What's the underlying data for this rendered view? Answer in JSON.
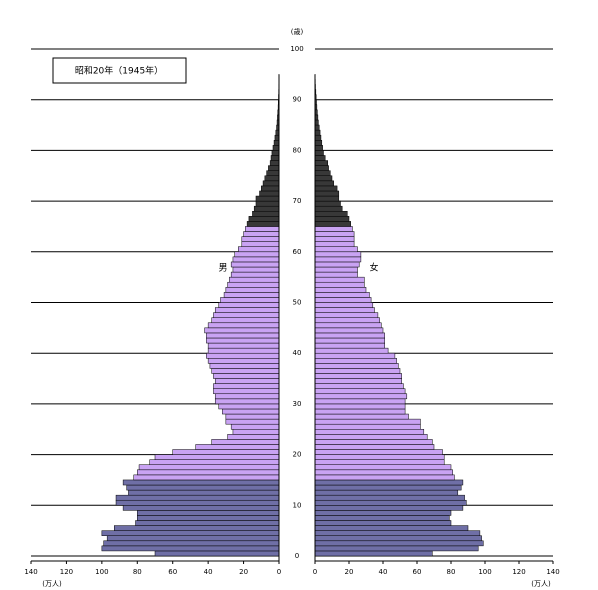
{
  "chart_data": {
    "type": "pyramid",
    "title": "昭和20年（1945年）",
    "y_unit": "(歳)",
    "x_unit": "(万人)",
    "ages": [
      0,
      1,
      2,
      3,
      4,
      5,
      6,
      7,
      8,
      9,
      10,
      11,
      12,
      13,
      14,
      15,
      16,
      17,
      18,
      19,
      20,
      21,
      22,
      23,
      24,
      25,
      26,
      27,
      28,
      29,
      30,
      31,
      32,
      33,
      34,
      35,
      36,
      37,
      38,
      39,
      40,
      41,
      42,
      43,
      44,
      45,
      46,
      47,
      48,
      49,
      50,
      51,
      52,
      53,
      54,
      55,
      56,
      57,
      58,
      59,
      60,
      61,
      62,
      63,
      64,
      65,
      66,
      67,
      68,
      69,
      70,
      71,
      72,
      73,
      74,
      75,
      76,
      77,
      78,
      79,
      80,
      81,
      82,
      83,
      84,
      85,
      86,
      87,
      88,
      89,
      90,
      91,
      92,
      93,
      94
    ],
    "series": [
      {
        "name": "男",
        "side": "left",
        "values": [
          70,
          100,
          99,
          97,
          100,
          93,
          81,
          80,
          80,
          88,
          92,
          92,
          85,
          86,
          88,
          82,
          80,
          79,
          73,
          70,
          60,
          47,
          38,
          29,
          26,
          27,
          30,
          30,
          32,
          34,
          36,
          36,
          37,
          37,
          36,
          37,
          38,
          39,
          40,
          41,
          40,
          40,
          41,
          41,
          42,
          40,
          38,
          37,
          36,
          34,
          33,
          31,
          30,
          29,
          28,
          27,
          26,
          27,
          26,
          25,
          23,
          21,
          21,
          20,
          19,
          18,
          17,
          15,
          14,
          13,
          13,
          11,
          10,
          9,
          8,
          7,
          6,
          5,
          4.5,
          4,
          3.4,
          2.8,
          2.3,
          1.8,
          1.4,
          1.1,
          0.9,
          0.7,
          0.5,
          0.4,
          0.3,
          0.2,
          0.15,
          0.1,
          0.05
        ]
      },
      {
        "name": "女",
        "side": "right",
        "values": [
          69,
          96,
          99,
          98,
          97,
          90,
          80,
          79,
          80,
          87,
          89,
          88,
          84,
          86,
          87,
          82,
          81,
          80,
          76,
          76,
          75,
          70,
          69,
          66,
          64,
          62,
          62,
          55,
          53,
          53,
          53,
          54,
          53,
          52,
          51,
          51,
          50,
          49,
          48,
          47,
          43,
          41,
          41,
          41,
          40,
          39,
          38,
          37,
          35,
          34,
          33,
          32,
          30,
          29,
          29,
          25,
          25,
          26,
          27,
          27,
          25,
          23,
          23,
          23,
          22,
          21,
          20,
          19,
          16,
          15,
          14,
          14,
          13,
          11,
          10,
          9,
          8,
          7.5,
          6,
          5,
          4.5,
          4,
          3.5,
          3,
          2.5,
          2,
          1.7,
          1.4,
          1.1,
          0.9,
          0.7,
          0.5,
          0.3,
          0.2,
          0.1
        ]
      }
    ],
    "color_bands": [
      {
        "from": 0,
        "color": "#6f6fa6"
      },
      {
        "from": 15,
        "color": "#c9a3f3"
      },
      {
        "from": 65,
        "color": "#383838"
      }
    ],
    "ylim": [
      0,
      100
    ],
    "yticks": [
      0,
      10,
      20,
      30,
      40,
      50,
      60,
      70,
      80,
      90,
      100
    ],
    "xlim": [
      0,
      140
    ],
    "xticks": [
      0,
      20,
      40,
      60,
      80,
      100,
      120,
      140
    ],
    "grid": true
  }
}
